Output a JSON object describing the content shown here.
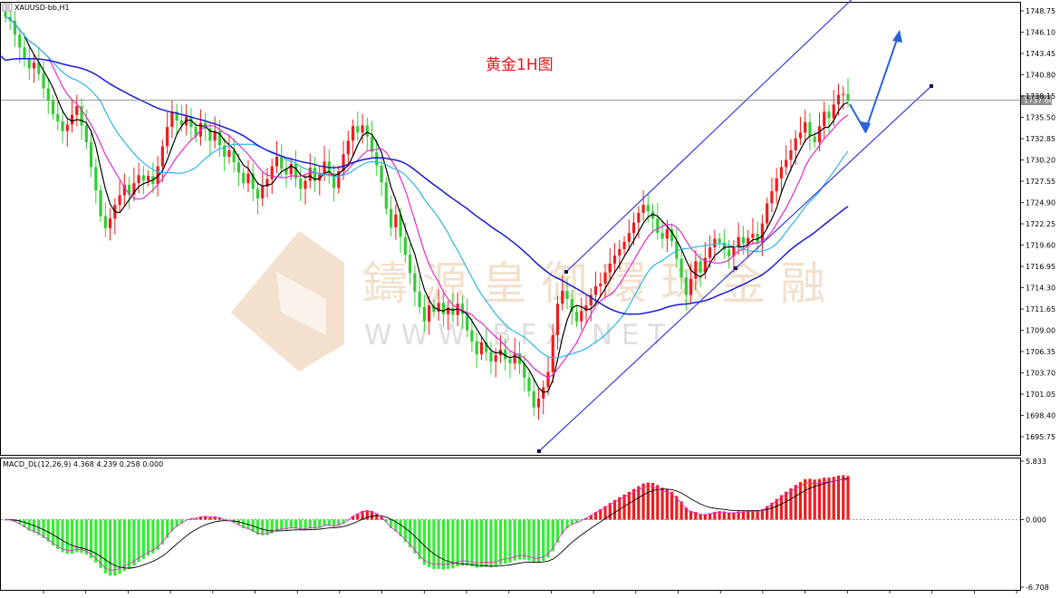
{
  "window": {
    "title": "XAUUSD-bb,H1"
  },
  "annotation": "黄金1H图",
  "watermark": {
    "brand": "鑄 源 皇 御 環 球 金 融",
    "url": "W W W . B F X . N E T"
  },
  "colors": {
    "bull": "#ee1c1c",
    "bear": "#33cc33",
    "ma_fast": "#000000",
    "ma_mid": "#e22bd1",
    "ma_slow": "#2ab6e8",
    "ma_long": "#1a1ad2",
    "channel": "#3a3ad8",
    "arrow": "#2a62d6",
    "macd_pos": "#ee1c1c",
    "macd_neg": "#33ee33"
  },
  "chart_data": [
    {
      "type": "candlestick",
      "symbol": "XAUUSD-bb",
      "timeframe": "H1",
      "ylim": [
        1693.5,
        1750.5
      ],
      "y_ticks": [
        "1748.75",
        "1746.10",
        "1743.45",
        "1740.80",
        "1738.15",
        "1735.50",
        "1732.85",
        "1730.20",
        "1727.55",
        "1724.90",
        "1722.25",
        "1719.60",
        "1716.95",
        "1714.30",
        "1711.65",
        "1709.00",
        "1706.35",
        "1703.70",
        "1701.05",
        "1698.40",
        "1695.75"
      ],
      "current_price": "1737.60",
      "close": [
        1748.0,
        1747.5,
        1745.8,
        1744.2,
        1742.8,
        1741.6,
        1742.3,
        1740.9,
        1739.1,
        1737.6,
        1735.9,
        1735.0,
        1733.8,
        1734.6,
        1735.8,
        1736.9,
        1734.5,
        1732.4,
        1729.3,
        1726.4,
        1723.2,
        1721.7,
        1722.9,
        1724.6,
        1725.8,
        1727.1,
        1725.9,
        1727.3,
        1728.3,
        1727.6,
        1728.2,
        1727.2,
        1729.4,
        1731.9,
        1734.3,
        1736.2,
        1735.1,
        1734.5,
        1735.6,
        1734.3,
        1733.1,
        1734.8,
        1734.1,
        1732.6,
        1733.8,
        1732.0,
        1730.6,
        1731.4,
        1729.9,
        1728.6,
        1727.3,
        1728.5,
        1726.6,
        1725.4,
        1726.9,
        1727.8,
        1729.4,
        1730.6,
        1729.1,
        1728.4,
        1729.7,
        1727.9,
        1726.6,
        1727.6,
        1729.2,
        1727.6,
        1728.4,
        1730.0,
        1728.5,
        1726.7,
        1728.8,
        1730.9,
        1732.6,
        1734.4,
        1733.6,
        1734.5,
        1733.1,
        1731.2,
        1729.5,
        1727.4,
        1724.1,
        1721.8,
        1723.4,
        1720.6,
        1718.4,
        1716.1,
        1713.8,
        1711.9,
        1710.1,
        1712.1,
        1711.3,
        1712.4,
        1711.0,
        1711.8,
        1710.9,
        1712.3,
        1711.0,
        1709.0,
        1707.6,
        1706.0,
        1707.5,
        1706.3,
        1705.1,
        1705.9,
        1706.6,
        1705.4,
        1704.9,
        1706.1,
        1704.8,
        1703.1,
        1701.4,
        1699.4,
        1700.5,
        1701.9,
        1703.8,
        1708.4,
        1712.3,
        1713.9,
        1712.9,
        1711.3,
        1710.1,
        1711.4,
        1712.1,
        1713.4,
        1714.5,
        1714.8,
        1716.2,
        1717.3,
        1718.3,
        1719.1,
        1720.0,
        1721.1,
        1722.4,
        1723.6,
        1724.6,
        1723.8,
        1722.9,
        1721.1,
        1720.4,
        1721.6,
        1720.1,
        1717.9,
        1715.6,
        1713.4,
        1715.4,
        1717.6,
        1716.2,
        1718.0,
        1719.3,
        1720.4,
        1719.9,
        1719.0,
        1718.2,
        1719.4,
        1720.6,
        1719.8,
        1720.5,
        1721.0,
        1719.9,
        1722.3,
        1724.8,
        1726.3,
        1727.9,
        1729.3,
        1730.2,
        1731.4,
        1732.9,
        1733.6,
        1734.9,
        1733.1,
        1732.4,
        1734.4,
        1736.2,
        1735.4,
        1737.1,
        1738.3,
        1738.4,
        1737.6
      ]
    },
    {
      "type": "bar",
      "indicator": "MACD_DL(12,26,9)",
      "label": "MACD_DL(12,26,9) 4.368 4.239 0.258 0.000",
      "ylim": [
        -6.708,
        5.833
      ],
      "y_ticks": [
        "5.833",
        "0.000",
        "-6.708"
      ]
    }
  ]
}
